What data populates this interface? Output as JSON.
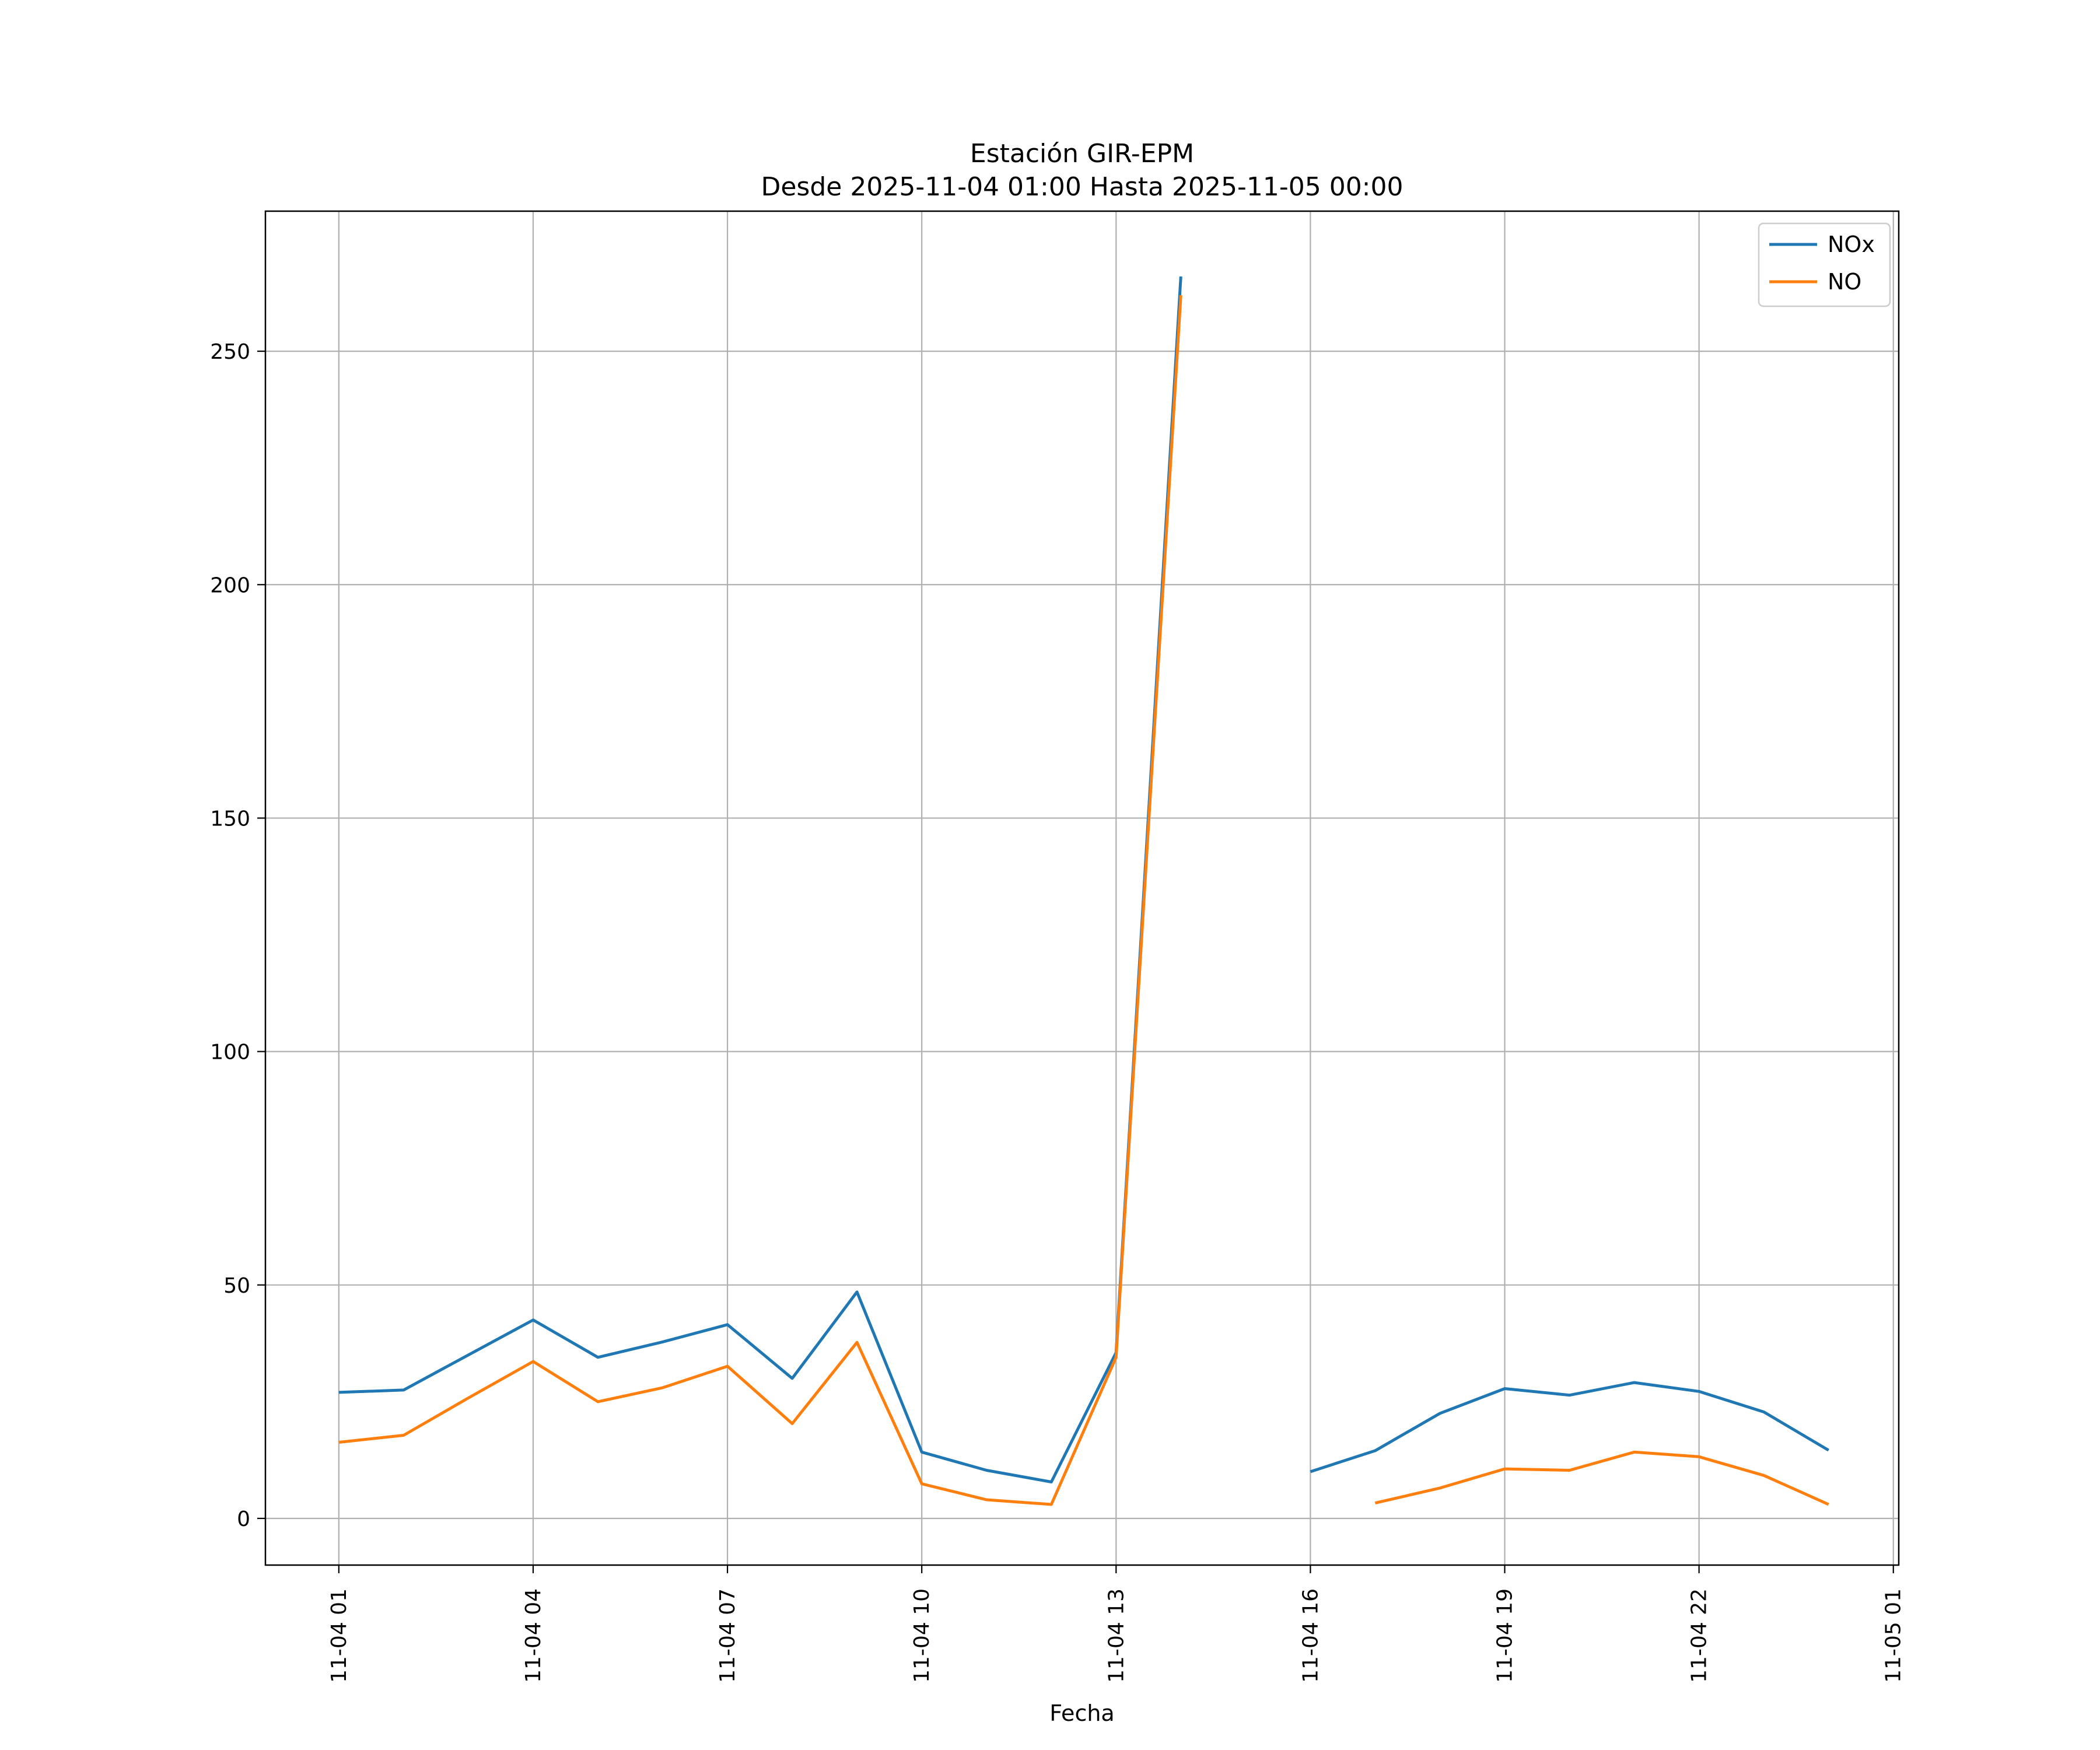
{
  "chart_data": {
    "type": "line",
    "title": "Estación GIR-EPM",
    "subtitle": "Desde 2025-11-04 01:00 Hasta 2025-11-05 00:00",
    "xlabel": "Fecha",
    "ylabel": "",
    "x": [
      "2025-11-04 01:00",
      "2025-11-04 02:00",
      "2025-11-04 03:00",
      "2025-11-04 04:00",
      "2025-11-04 05:00",
      "2025-11-04 06:00",
      "2025-11-04 07:00",
      "2025-11-04 08:00",
      "2025-11-04 09:00",
      "2025-11-04 10:00",
      "2025-11-04 11:00",
      "2025-11-04 12:00",
      "2025-11-04 13:00",
      "2025-11-04 14:00",
      "2025-11-04 15:00",
      "2025-11-04 16:00",
      "2025-11-04 17:00",
      "2025-11-04 18:00",
      "2025-11-04 19:00",
      "2025-11-04 20:00",
      "2025-11-04 21:00",
      "2025-11-04 22:00",
      "2025-11-04 23:00",
      "2025-11-05 00:00"
    ],
    "xlim": [
      "2025-11-03 23:52",
      "2025-11-05 01:05"
    ],
    "ylim": [
      -10,
      280
    ],
    "x_ticks": [
      {
        "value": "2025-11-04 01:00",
        "label": "11-04 01"
      },
      {
        "value": "2025-11-04 04:00",
        "label": "11-04 04"
      },
      {
        "value": "2025-11-04 07:00",
        "label": "11-04 07"
      },
      {
        "value": "2025-11-04 10:00",
        "label": "11-04 10"
      },
      {
        "value": "2025-11-04 13:00",
        "label": "11-04 13"
      },
      {
        "value": "2025-11-04 16:00",
        "label": "11-04 16"
      },
      {
        "value": "2025-11-04 19:00",
        "label": "11-04 19"
      },
      {
        "value": "2025-11-04 22:00",
        "label": "11-04 22"
      },
      {
        "value": "2025-11-05 01:00",
        "label": "11-05 01"
      }
    ],
    "y_ticks": [
      0,
      50,
      100,
      150,
      200,
      250
    ],
    "grid": true,
    "legend_position": "top-right",
    "series": [
      {
        "name": "NOx",
        "color": "#1f77b4",
        "values": [
          27,
          27.5,
          35,
          42.5,
          34.5,
          37.8,
          41.5,
          30,
          48.5,
          14.2,
          10.3,
          7.8,
          35.5,
          266,
          null,
          10,
          14.5,
          22.5,
          27.8,
          26.4,
          29.1,
          27.2,
          22.8,
          14.6
        ]
      },
      {
        "name": "NO",
        "color": "#ff7f0e",
        "values": [
          16.3,
          17.8,
          25.8,
          33.6,
          25,
          28,
          32.6,
          20.3,
          37.7,
          7.4,
          4,
          3,
          34.5,
          262,
          null,
          null,
          3.3,
          6.5,
          10.6,
          10.3,
          14.2,
          13.2,
          9.2,
          3
        ]
      }
    ]
  }
}
